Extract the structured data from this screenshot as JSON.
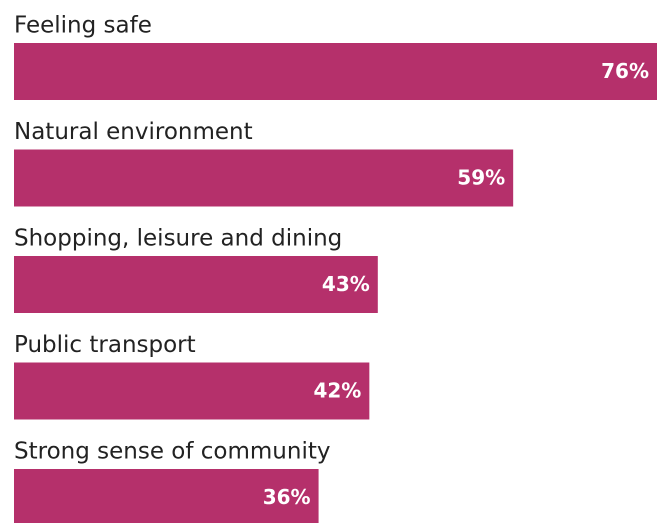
{
  "chart_data": {
    "type": "bar",
    "orientation": "horizontal",
    "categories": [
      "Feeling safe",
      "Natural environment",
      "Shopping, leisure and dining",
      "Public transport",
      "Strong sense of community"
    ],
    "values": [
      76,
      59,
      43,
      42,
      36
    ],
    "value_labels": [
      "76%",
      "59%",
      "43%",
      "42%",
      "36%"
    ],
    "color": "#b5306b"
  }
}
